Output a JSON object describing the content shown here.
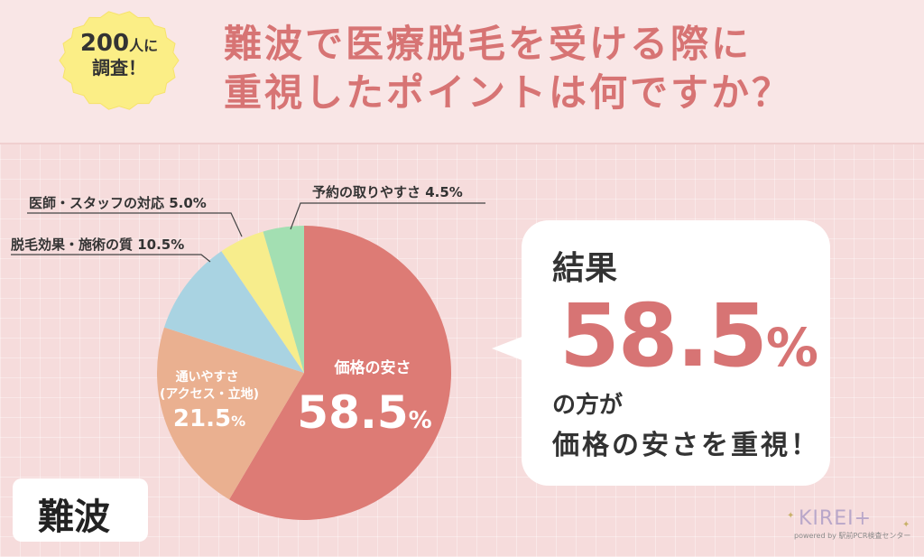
{
  "badge": {
    "line1_num": "200",
    "line1_suffix": "人に",
    "line2": "調査！"
  },
  "title": {
    "line1": "難波で医療脱毛を受ける際に",
    "line2": "重視したポイントは何ですか？"
  },
  "colors": {
    "title": "#d77474",
    "price": "#dd7b75",
    "access": "#eab090",
    "quality": "#a9d3e2",
    "staff": "#f7ed8c",
    "reservation": "#a3dfb2"
  },
  "chart_data": {
    "type": "pie",
    "title": "重視したポイントは何ですか？",
    "slices": [
      {
        "label": "価格の安さ",
        "value": 58.5,
        "value_text": "58.5",
        "unit": "%",
        "color": "#dd7b75"
      },
      {
        "label": "通いやすさ\n(アクセス・立地)",
        "value": 21.5,
        "value_text": "21.5",
        "unit": "%",
        "color": "#eab090"
      },
      {
        "label": "脱毛効果・施術の質 10.5%",
        "value": 10.5,
        "color": "#a9d3e2"
      },
      {
        "label": "医師・スタッフの対応 5.0%",
        "value": 5.0,
        "color": "#f7ed8c"
      },
      {
        "label": "予約の取りやすさ 4.5%",
        "value": 4.5,
        "color": "#a3dfb2"
      }
    ]
  },
  "result": {
    "label": "結果",
    "value": "58.5",
    "unit": "%",
    "line1": "の方が",
    "line2": "価格の安さを重視！"
  },
  "location": "難波",
  "logo": {
    "main": "KIREI+",
    "sub": "powered by 駅前PCR検査センター"
  }
}
